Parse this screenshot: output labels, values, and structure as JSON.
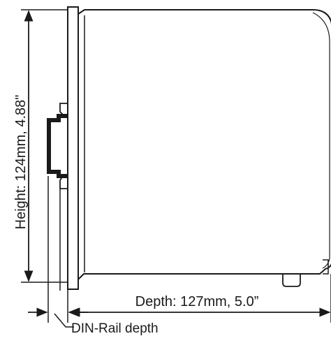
{
  "dimensions": {
    "height_label": "Height: 124mm,  4.88\"",
    "depth_label": "Depth: 127mm,  5.0”",
    "din_rail_label": "DIN-Rail depth"
  },
  "line_color": "#1a1a1a"
}
